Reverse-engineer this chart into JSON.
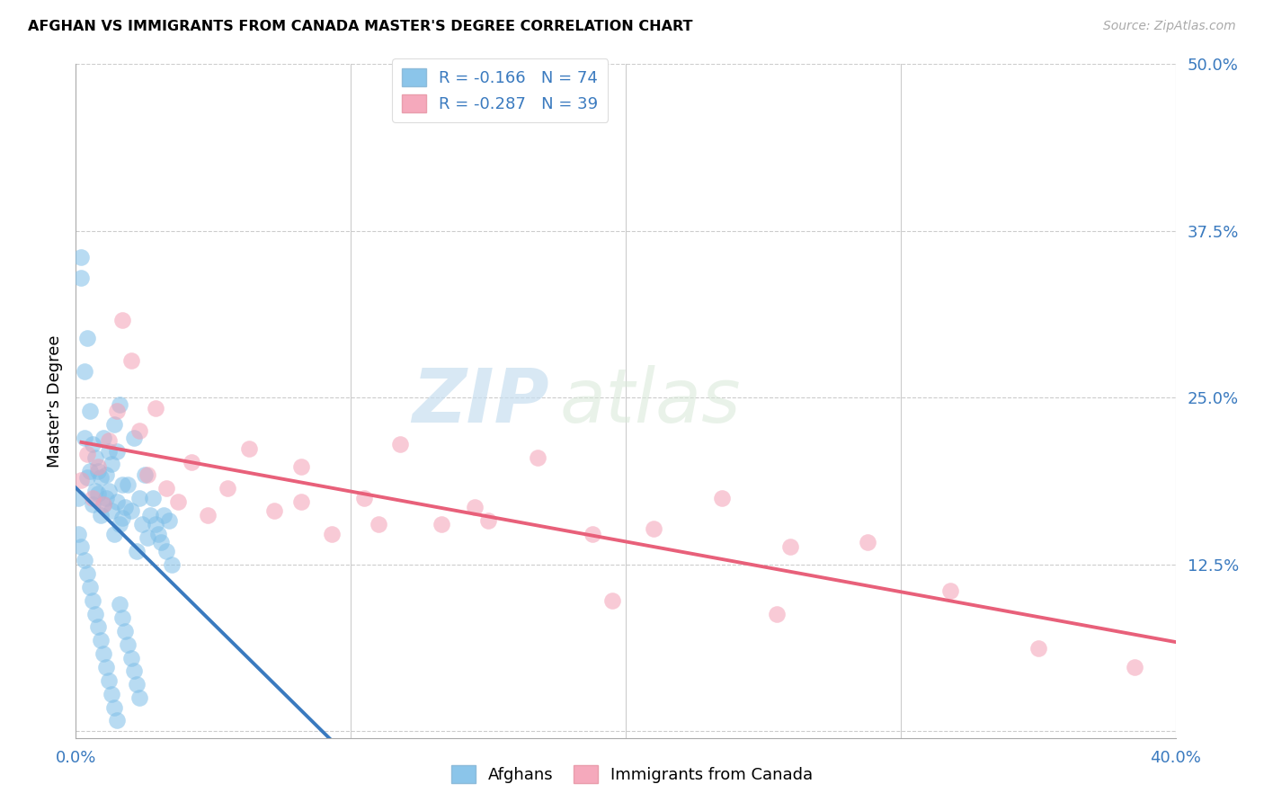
{
  "title": "AFGHAN VS IMMIGRANTS FROM CANADA MASTER'S DEGREE CORRELATION CHART",
  "source": "Source: ZipAtlas.com",
  "ylabel": "Master's Degree",
  "xlim": [
    0.0,
    0.4
  ],
  "ylim": [
    -0.005,
    0.5
  ],
  "yticks": [
    0.0,
    0.125,
    0.25,
    0.375,
    0.5
  ],
  "ytick_labels": [
    "",
    "12.5%",
    "25.0%",
    "37.5%",
    "50.0%"
  ],
  "legend_r1": "R = -0.166",
  "legend_n1": "N = 74",
  "legend_r2": "R = -0.287",
  "legend_n2": "N = 39",
  "color_blue": "#7fbfe8",
  "color_pink": "#f4a0b5",
  "color_blue_line": "#3a7abf",
  "color_pink_line": "#e8607a",
  "color_dashed": "#aaccee",
  "watermark_zip": "ZIP",
  "watermark_atlas": "atlas",
  "afghans_x": [
    0.001,
    0.002,
    0.003,
    0.003,
    0.004,
    0.004,
    0.005,
    0.005,
    0.006,
    0.006,
    0.007,
    0.007,
    0.008,
    0.008,
    0.009,
    0.009,
    0.01,
    0.01,
    0.011,
    0.011,
    0.012,
    0.012,
    0.013,
    0.013,
    0.014,
    0.014,
    0.015,
    0.015,
    0.016,
    0.016,
    0.017,
    0.017,
    0.018,
    0.019,
    0.02,
    0.021,
    0.022,
    0.023,
    0.024,
    0.025,
    0.026,
    0.027,
    0.028,
    0.029,
    0.03,
    0.031,
    0.032,
    0.033,
    0.034,
    0.035,
    0.001,
    0.002,
    0.003,
    0.004,
    0.005,
    0.006,
    0.007,
    0.008,
    0.009,
    0.01,
    0.011,
    0.012,
    0.013,
    0.014,
    0.015,
    0.016,
    0.017,
    0.018,
    0.019,
    0.02,
    0.021,
    0.022,
    0.023,
    0.002
  ],
  "afghans_y": [
    0.175,
    0.34,
    0.27,
    0.22,
    0.295,
    0.19,
    0.24,
    0.195,
    0.215,
    0.17,
    0.205,
    0.18,
    0.195,
    0.178,
    0.19,
    0.162,
    0.22,
    0.17,
    0.192,
    0.175,
    0.21,
    0.18,
    0.165,
    0.2,
    0.23,
    0.148,
    0.172,
    0.21,
    0.155,
    0.245,
    0.185,
    0.16,
    0.168,
    0.185,
    0.165,
    0.22,
    0.135,
    0.175,
    0.155,
    0.192,
    0.145,
    0.162,
    0.175,
    0.155,
    0.148,
    0.142,
    0.162,
    0.135,
    0.158,
    0.125,
    0.148,
    0.138,
    0.128,
    0.118,
    0.108,
    0.098,
    0.088,
    0.078,
    0.068,
    0.058,
    0.048,
    0.038,
    0.028,
    0.018,
    0.008,
    0.095,
    0.085,
    0.075,
    0.065,
    0.055,
    0.045,
    0.035,
    0.025,
    0.355
  ],
  "canada_x": [
    0.002,
    0.004,
    0.006,
    0.008,
    0.01,
    0.012,
    0.015,
    0.017,
    0.02,
    0.023,
    0.026,
    0.029,
    0.033,
    0.037,
    0.042,
    0.048,
    0.055,
    0.063,
    0.072,
    0.082,
    0.093,
    0.105,
    0.118,
    0.133,
    0.15,
    0.168,
    0.188,
    0.21,
    0.235,
    0.26,
    0.288,
    0.318,
    0.35,
    0.385,
    0.082,
    0.11,
    0.145,
    0.195,
    0.255
  ],
  "canada_y": [
    0.188,
    0.208,
    0.175,
    0.198,
    0.17,
    0.218,
    0.24,
    0.308,
    0.278,
    0.225,
    0.192,
    0.242,
    0.182,
    0.172,
    0.202,
    0.162,
    0.182,
    0.212,
    0.165,
    0.172,
    0.148,
    0.175,
    0.215,
    0.155,
    0.158,
    0.205,
    0.148,
    0.152,
    0.175,
    0.138,
    0.142,
    0.105,
    0.062,
    0.048,
    0.198,
    0.155,
    0.168,
    0.098,
    0.088
  ]
}
